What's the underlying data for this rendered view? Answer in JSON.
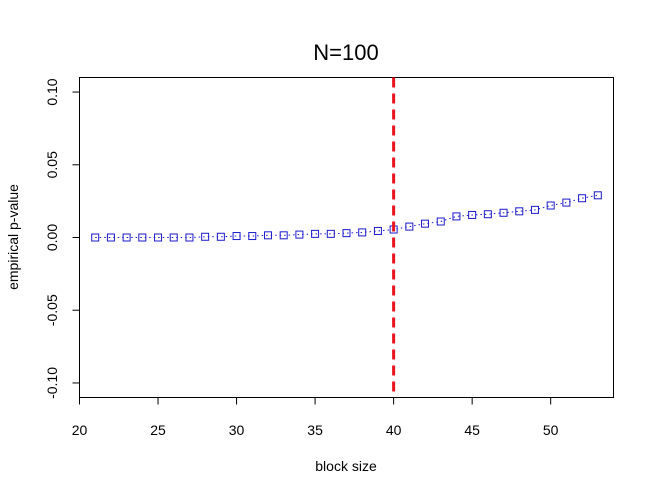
{
  "chart_data": {
    "type": "scatter",
    "title": "N=100",
    "xlabel": "block size",
    "ylabel": "empirical p-value",
    "xlim": [
      20,
      54
    ],
    "ylim": [
      -0.11,
      0.11
    ],
    "x_ticks": [
      20,
      25,
      30,
      35,
      40,
      45,
      50
    ],
    "y_ticks": [
      -0.1,
      -0.05,
      0.0,
      0.05,
      0.1
    ],
    "x_tick_labels": [
      "20",
      "25",
      "30",
      "35",
      "40",
      "45",
      "50"
    ],
    "y_tick_labels": [
      "-0.10",
      "-0.05",
      "0.00",
      "0.05",
      "0.10"
    ],
    "grid": false,
    "marker": "open-square",
    "line_style": "dotted",
    "series_color": "#1a1acc",
    "vline": {
      "x": 40,
      "color": "#e8141e",
      "style": "dashed"
    },
    "x": [
      21,
      22,
      23,
      24,
      25,
      26,
      27,
      28,
      29,
      30,
      31,
      32,
      33,
      34,
      35,
      36,
      37,
      38,
      39,
      40,
      41,
      42,
      43,
      44,
      45,
      46,
      47,
      48,
      49,
      50,
      51,
      52,
      53
    ],
    "y": [
      0.0,
      0.0,
      0.0,
      0.0,
      0.0,
      0.0,
      0.0,
      0.0005,
      0.0005,
      0.001,
      0.001,
      0.0015,
      0.0015,
      0.002,
      0.0025,
      0.0025,
      0.003,
      0.0035,
      0.0045,
      0.0055,
      0.0075,
      0.0095,
      0.011,
      0.0145,
      0.0155,
      0.016,
      0.017,
      0.018,
      0.019,
      0.022,
      0.024,
      0.027,
      0.029
    ]
  }
}
